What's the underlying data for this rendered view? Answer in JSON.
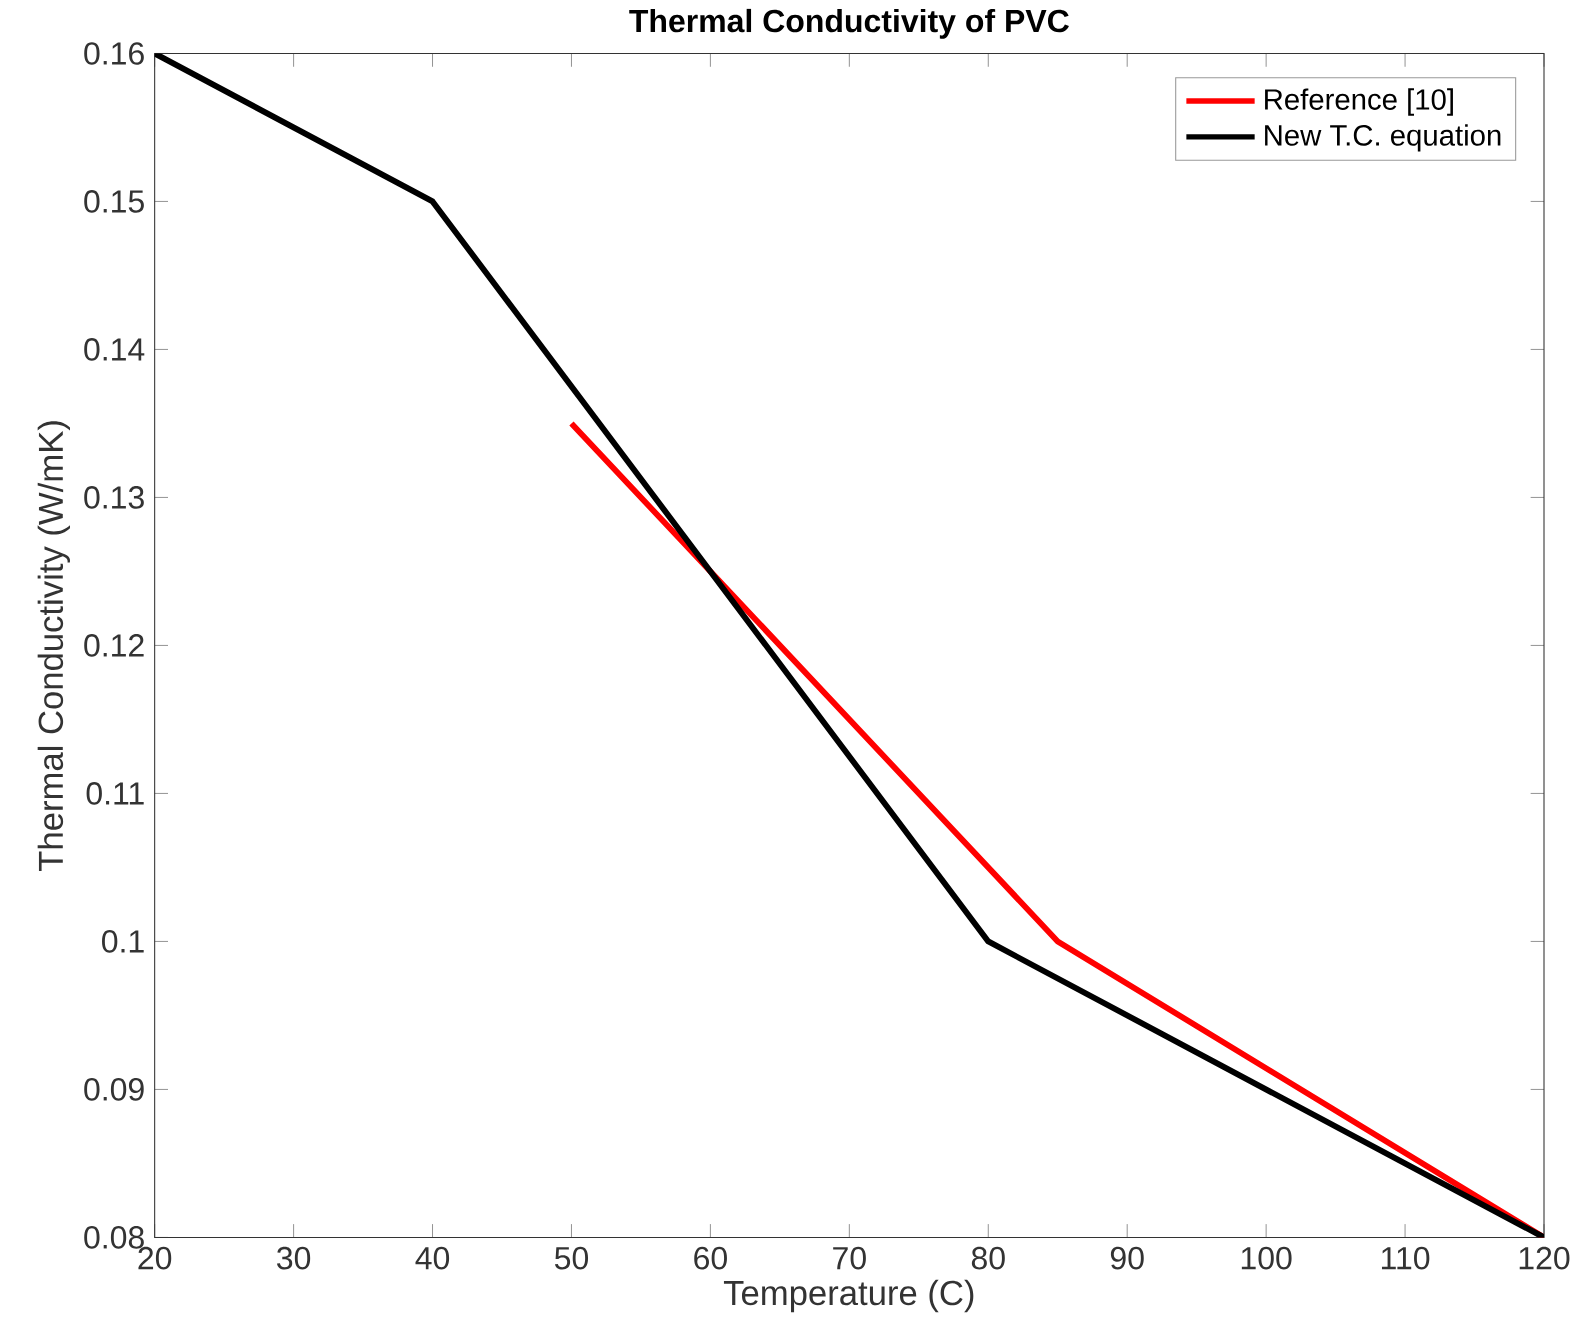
{
  "chart_data": {
    "type": "line",
    "title": "Thermal Conductivity of PVC",
    "xlabel": "Temperature (C)",
    "ylabel": "Thermal Conductivity (W/mK)",
    "xlim": [
      20,
      120
    ],
    "xticks": [
      20,
      30,
      40,
      50,
      60,
      70,
      80,
      90,
      100,
      110,
      120
    ],
    "ylim": [
      0.08,
      0.16
    ],
    "yticks": [
      0.08,
      0.09,
      0.1,
      0.11,
      0.12,
      0.13,
      0.14,
      0.15,
      0.16
    ],
    "grid": false,
    "legend": "top right",
    "marker": "none",
    "line_style": "solid",
    "series": [
      {
        "name": "Reference [10]",
        "color": "#ff0000",
        "x": [
          50,
          85,
          120
        ],
        "values": [
          0.135,
          0.1,
          0.08
        ]
      },
      {
        "name": "New T.C. equation",
        "color": "#000000",
        "x": [
          20,
          40,
          80,
          120
        ],
        "values": [
          0.16,
          0.15,
          0.1,
          0.08
        ]
      }
    ]
  }
}
